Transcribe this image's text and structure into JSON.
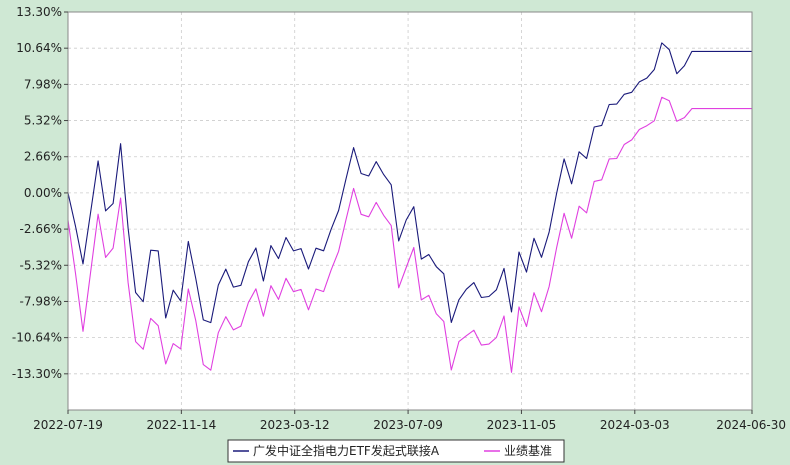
{
  "colors": {
    "background": "#cfe8d4",
    "plot_background": "#ffffff",
    "grid": "#cccccc",
    "fund": "#1a1a7a",
    "benchmark": "#e040e0"
  },
  "chart_data": {
    "type": "line",
    "title": "",
    "xlabel": "",
    "ylabel": "",
    "ylim": [
      -0.1596,
      0.133
    ],
    "y_ticks": [
      0.133,
      0.1064,
      0.0798,
      0.0532,
      0.0266,
      0.0,
      -0.0266,
      -0.0532,
      -0.0798,
      -0.1064,
      -0.133
    ],
    "y_tick_labels": [
      "13.30%",
      "10.64%",
      "7.98%",
      "5.32%",
      "2.66%",
      "0.00%",
      "-2.66%",
      "-5.32%",
      "-7.98%",
      "-10.64%",
      "-13.30%"
    ],
    "x_tick_labels": [
      "2022-07-19",
      "2022-11-14",
      "2023-03-12",
      "2023-07-09",
      "2023-11-05",
      "2024-03-03",
      "2024-06-30"
    ],
    "x_tick_positions": [
      0,
      118,
      236,
      354,
      472,
      590,
      712
    ],
    "x_range": [
      0,
      712
    ],
    "grid": true,
    "legend_position": "bottom-center",
    "series": [
      {
        "name": "广发中证全指电力ETF发起式联接A",
        "color_key": "fund",
        "x": [
          0,
          8,
          15,
          22,
          30,
          38,
          45,
          52,
          58,
          65,
          72,
          80,
          88,
          95,
          100,
          108,
          118,
          125,
          135,
          145,
          155,
          165,
          175,
          182,
          188,
          196,
          205,
          212,
          220,
          228,
          236,
          244,
          252,
          260,
          268,
          276,
          284,
          292,
          300,
          308,
          316,
          324,
          330,
          338,
          345,
          352,
          360,
          368,
          376,
          384,
          392,
          400,
          408,
          416,
          424,
          432,
          440,
          448,
          456,
          462,
          470,
          478,
          486,
          494,
          502,
          510,
          518,
          526,
          534,
          542,
          550,
          558,
          566,
          574,
          582,
          590,
          598,
          606,
          614,
          622,
          630,
          638,
          646,
          654,
          662,
          670,
          678,
          686,
          694,
          702,
          708,
          712
        ],
        "values": [
          0.0,
          -0.025,
          -0.055,
          -0.025,
          0.03,
          -0.01,
          -0.03,
          0.05,
          0.02,
          -0.05,
          -0.08,
          -0.08,
          -0.03,
          -0.045,
          -0.098,
          -0.07,
          -0.08,
          -0.035,
          -0.07,
          -0.11,
          -0.07,
          -0.055,
          -0.075,
          -0.065,
          -0.05,
          -0.04,
          -0.07,
          -0.035,
          -0.05,
          -0.03,
          -0.045,
          -0.04,
          -0.06,
          -0.035,
          -0.045,
          -0.02,
          -0.01,
          0.02,
          0.04,
          0.0,
          0.02,
          0.025,
          0.01,
          0.005,
          -0.04,
          -0.02,
          -0.01,
          -0.05,
          -0.045,
          -0.055,
          -0.06,
          -0.1,
          -0.075,
          -0.07,
          -0.065,
          -0.08,
          -0.075,
          -0.07,
          -0.05,
          -0.09,
          -0.04,
          -0.06,
          -0.03,
          -0.05,
          -0.025,
          0.005,
          0.03,
          0.0,
          0.04,
          0.02,
          0.06,
          0.045,
          0.075,
          0.06,
          0.08,
          0.07,
          0.09,
          0.08,
          0.1,
          0.12,
          0.09,
          0.085,
          0.104,
          0.104,
          0.104,
          0.104,
          0.104,
          0.104,
          0.104,
          0.104,
          0.104,
          0.104
        ],
        "point_count": 92
      },
      {
        "name": "业绩基准",
        "color_key": "benchmark",
        "x": [
          0,
          8,
          15,
          22,
          30,
          38,
          45,
          52,
          58,
          65,
          72,
          80,
          88,
          95,
          100,
          108,
          118,
          125,
          135,
          145,
          155,
          165,
          175,
          182,
          188,
          196,
          205,
          212,
          220,
          228,
          236,
          244,
          252,
          260,
          268,
          276,
          284,
          292,
          300,
          308,
          316,
          324,
          330,
          338,
          345,
          352,
          360,
          368,
          376,
          384,
          392,
          400,
          408,
          416,
          424,
          432,
          440,
          448,
          456,
          462,
          470,
          478,
          486,
          494,
          502,
          510,
          518,
          526,
          534,
          542,
          550,
          558,
          566,
          574,
          582,
          590,
          598,
          606,
          614,
          622,
          630,
          638,
          646,
          654,
          662,
          670,
          678,
          686,
          694,
          702,
          708,
          712
        ],
        "values": [
          -0.02,
          -0.06,
          -0.105,
          -0.07,
          -0.01,
          -0.045,
          -0.06,
          0.01,
          -0.02,
          -0.09,
          -0.115,
          -0.115,
          -0.085,
          -0.1,
          -0.13,
          -0.11,
          -0.115,
          -0.07,
          -0.1,
          -0.145,
          -0.105,
          -0.09,
          -0.105,
          -0.095,
          -0.08,
          -0.07,
          -0.095,
          -0.065,
          -0.08,
          -0.06,
          -0.075,
          -0.07,
          -0.09,
          -0.065,
          -0.075,
          -0.05,
          -0.04,
          -0.01,
          0.01,
          -0.03,
          -0.01,
          -0.005,
          -0.02,
          -0.025,
          -0.075,
          -0.055,
          -0.04,
          -0.08,
          -0.075,
          -0.09,
          -0.095,
          -0.135,
          -0.105,
          -0.105,
          -0.1,
          -0.115,
          -0.11,
          -0.105,
          -0.085,
          -0.135,
          -0.08,
          -0.1,
          -0.07,
          -0.09,
          -0.065,
          -0.035,
          -0.01,
          -0.04,
          0.0,
          -0.02,
          0.02,
          0.005,
          0.035,
          0.02,
          0.045,
          0.035,
          0.055,
          0.045,
          0.06,
          0.08,
          0.055,
          0.05,
          0.062,
          0.062,
          0.062,
          0.062,
          0.062,
          0.062,
          0.062,
          0.062,
          0.062,
          0.062
        ],
        "point_count": 92
      }
    ]
  }
}
